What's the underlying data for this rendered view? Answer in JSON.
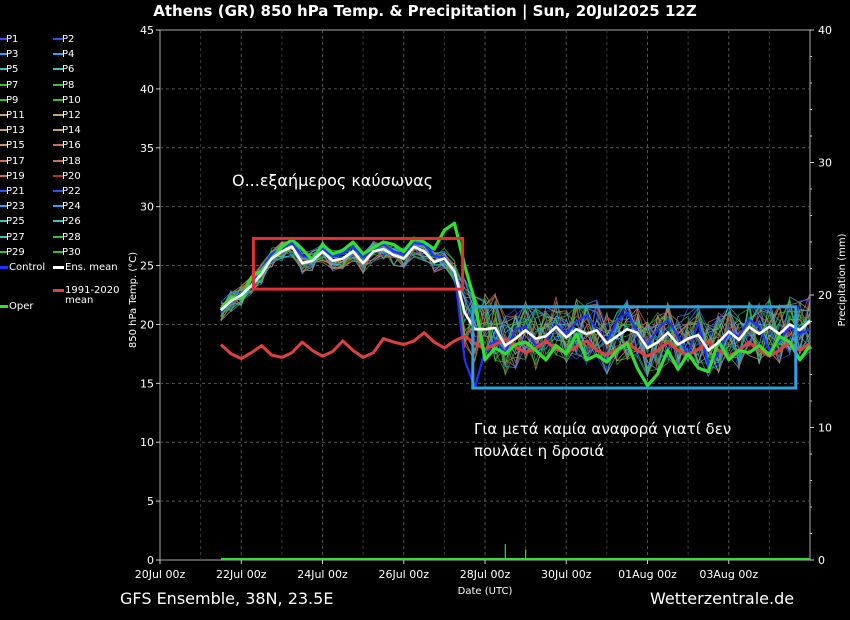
{
  "title": "Athens  (GR)  850 hPa Temp. & Precipitation | Sun, 20Jul2025 12Z",
  "footer": {
    "left": "GFS Ensemble, 38N, 23.5E",
    "right": "Wetterzentrale.de"
  },
  "legend": {
    "members": [
      {
        "label": "P1",
        "color": "#3050ff"
      },
      {
        "label": "P2",
        "color": "#3050ff"
      },
      {
        "label": "P3",
        "color": "#30a0ff"
      },
      {
        "label": "P4",
        "color": "#30a0ff"
      },
      {
        "label": "P5",
        "color": "#40c0c0"
      },
      {
        "label": "P6",
        "color": "#40c0c0"
      },
      {
        "label": "P7",
        "color": "#30c030"
      },
      {
        "label": "P8",
        "color": "#30c030"
      },
      {
        "label": "P9",
        "color": "#30c030"
      },
      {
        "label": "P10",
        "color": "#30c030"
      },
      {
        "label": "P11",
        "color": "#c8a070"
      },
      {
        "label": "P12",
        "color": "#c8a070"
      },
      {
        "label": "P13",
        "color": "#c8a070"
      },
      {
        "label": "P14",
        "color": "#c8a070"
      },
      {
        "label": "P15",
        "color": "#d09060"
      },
      {
        "label": "P16",
        "color": "#d07050"
      },
      {
        "label": "P17",
        "color": "#d07050"
      },
      {
        "label": "P18",
        "color": "#d07050"
      },
      {
        "label": "P19",
        "color": "#d07050"
      },
      {
        "label": "P20",
        "color": "#c03030"
      },
      {
        "label": "P21",
        "color": "#3050ff"
      },
      {
        "label": "P22",
        "color": "#3050ff"
      },
      {
        "label": "P23",
        "color": "#30a0ff"
      },
      {
        "label": "P24",
        "color": "#30a0ff"
      },
      {
        "label": "P25",
        "color": "#40c0c0"
      },
      {
        "label": "P26",
        "color": "#40c0c0"
      },
      {
        "label": "P27",
        "color": "#40c0c0"
      },
      {
        "label": "P28",
        "color": "#30c030"
      },
      {
        "label": "P29",
        "color": "#30c030"
      },
      {
        "label": "P30",
        "color": "#30c030"
      }
    ],
    "control": {
      "label": "Control",
      "color": "#2030ff"
    },
    "ens_mean": {
      "label": "Ens. mean",
      "color": "#ffffff"
    },
    "oper": {
      "label": "Oper",
      "color": "#30e030"
    },
    "clim": {
      "label": "1991-2020\nmean",
      "line1": "1991-2020",
      "line2": "mean",
      "color": "#e04040"
    }
  },
  "annotations": {
    "heatwave": "Ο...εξαήμερος καύσωνας",
    "note_line1": "Για μετά καμία αναφορά γιατί δεν",
    "note_line2": "πουλάει η δροσιά",
    "red_box_color": "#e03030",
    "blue_box_color": "#30a0e0"
  },
  "chart_data": {
    "type": "line",
    "xlabel": "Date (UTC)",
    "ylabel": "850 hPa Temp. (°C)",
    "y2label": "Precipitation (mm)",
    "ylim": [
      0,
      45
    ],
    "y2lim": [
      0,
      40
    ],
    "yticks": [
      0,
      5,
      10,
      15,
      20,
      25,
      30,
      35,
      40,
      45
    ],
    "y2ticks": [
      0,
      10,
      20,
      30,
      40
    ],
    "x_start_day": 0,
    "x_end_day": 16,
    "xtick_days": [
      0,
      2,
      4,
      6,
      8,
      10,
      12,
      14
    ],
    "xtick_labels": [
      "20Jul 00z",
      "22Jul 00z",
      "24Jul 00z",
      "26Jul 00z",
      "28Jul 00z",
      "30Jul 00z",
      "01Aug 00z",
      "03Aug 00z"
    ],
    "grid": true,
    "series": [
      {
        "name": "1991-2020 mean",
        "color": "#e04040",
        "x": [
          1.5,
          1.75,
          2,
          2.25,
          2.5,
          2.75,
          3,
          3.25,
          3.5,
          3.75,
          4,
          4.25,
          4.5,
          4.75,
          5,
          5.25,
          5.5,
          5.75,
          6,
          6.25,
          6.5,
          6.75,
          7,
          7.25,
          7.5,
          7.75,
          8,
          8.25,
          8.5,
          8.75,
          9,
          9.25,
          9.5,
          9.75,
          10,
          10.25,
          10.5,
          10.75,
          11,
          11.25,
          11.5,
          11.75,
          12,
          12.25,
          12.5,
          12.75,
          13,
          13.25,
          13.5,
          13.75,
          14,
          14.25,
          14.5,
          14.75,
          15,
          15.25,
          15.5,
          15.75,
          16
        ],
        "y": [
          18.3,
          17.5,
          17.1,
          17.6,
          18.2,
          17.4,
          17.2,
          17.6,
          18.5,
          17.8,
          17.3,
          17.7,
          18.6,
          17.8,
          17.2,
          17.6,
          18.8,
          18.5,
          18.3,
          18.6,
          19.3,
          18.5,
          18.0,
          18.6,
          19.0,
          18.4,
          17.9,
          18.3,
          18.8,
          18.1,
          17.6,
          18.0,
          18.6,
          17.9,
          17.6,
          18.1,
          18.6,
          17.8,
          17.4,
          17.9,
          18.5,
          17.8,
          17.3,
          17.8,
          18.5,
          17.8,
          17.4,
          17.9,
          18.6,
          17.8,
          17.3,
          17.8,
          18.5,
          17.8,
          17.3,
          17.8,
          18.5,
          17.8,
          18.4
        ]
      },
      {
        "name": "Ens. mean",
        "color": "#ffffff",
        "x": [
          1.5,
          1.75,
          2,
          2.25,
          2.5,
          2.75,
          3,
          3.25,
          3.5,
          3.75,
          4,
          4.25,
          4.5,
          4.75,
          5,
          5.25,
          5.5,
          5.75,
          6,
          6.25,
          6.5,
          6.75,
          7,
          7.25,
          7.5,
          7.75,
          8,
          8.25,
          8.5,
          8.75,
          9,
          9.25,
          9.5,
          9.75,
          10,
          10.25,
          10.5,
          10.75,
          11,
          11.25,
          11.5,
          11.75,
          12,
          12.25,
          12.5,
          12.75,
          13,
          13.25,
          13.5,
          13.75,
          14,
          14.25,
          14.5,
          14.75,
          15,
          15.25,
          15.5,
          15.75,
          16
        ],
        "y": [
          21.2,
          22.0,
          22.5,
          23.3,
          24.3,
          25.6,
          26.2,
          26.6,
          25.2,
          25.4,
          26.2,
          25.4,
          25.6,
          26.2,
          25.2,
          26.2,
          26.4,
          25.9,
          25.6,
          26.6,
          26.2,
          25.3,
          25.6,
          24.5,
          21.0,
          19.6,
          19.6,
          19.7,
          18.2,
          18.8,
          19.5,
          18.8,
          19.0,
          19.8,
          18.9,
          19.6,
          19.2,
          19.5,
          18.4,
          19.0,
          19.6,
          19.3,
          18.0,
          18.5,
          19.3,
          18.3,
          18.8,
          19.1,
          17.8,
          18.5,
          19.4,
          18.7,
          19.8,
          19.2,
          19.8,
          19.2,
          20.0,
          19.5,
          20.3
        ]
      },
      {
        "name": "Oper",
        "color": "#30e030",
        "x": [
          1.5,
          1.75,
          2,
          2.25,
          2.5,
          2.75,
          3,
          3.25,
          3.5,
          3.75,
          4,
          4.25,
          4.5,
          4.75,
          5,
          5.25,
          5.5,
          5.75,
          6,
          6.25,
          6.5,
          6.75,
          7,
          7.25,
          7.5,
          7.75,
          8,
          8.25,
          8.5,
          8.75,
          9,
          9.25,
          9.5,
          9.75,
          10,
          10.25,
          10.5,
          10.75,
          11,
          11.25,
          11.5,
          11.75,
          12,
          12.25,
          12.5,
          12.75,
          13,
          13.25,
          13.5,
          13.75,
          14,
          14.25,
          14.5,
          14.75,
          15,
          15.25,
          15.5,
          15.75,
          16
        ],
        "y": [
          21.3,
          22.3,
          22.2,
          24.0,
          24.6,
          25.6,
          26.6,
          27.2,
          26.4,
          25.5,
          26.8,
          26.0,
          26.3,
          27.0,
          26.0,
          26.5,
          27.0,
          26.8,
          26.2,
          27.3,
          27.0,
          26.4,
          28.0,
          28.6,
          25.0,
          22.0,
          17.0,
          18.0,
          17.5,
          18.3,
          18.5,
          17.8,
          17.0,
          18.2,
          17.5,
          19.2,
          17.0,
          17.4,
          16.8,
          17.8,
          18.4,
          16.3,
          14.8,
          15.8,
          17.8,
          16.2,
          17.5,
          16.3,
          16.0,
          18.6,
          17.0,
          17.8,
          17.6,
          18.2,
          17.4,
          19.0,
          18.5,
          17.0,
          18.2
        ]
      },
      {
        "name": "Control",
        "color": "#2030ff",
        "x": [
          1.5,
          1.75,
          2,
          2.25,
          2.5,
          2.75,
          3,
          3.25,
          3.5,
          3.75,
          4,
          4.25,
          4.5,
          4.75,
          5,
          5.25,
          5.5,
          5.75,
          6,
          6.25,
          6.5,
          6.75,
          7,
          7.25,
          7.5,
          7.75,
          8,
          8.25,
          8.5,
          8.75,
          9,
          9.25,
          9.5,
          9.75,
          10,
          10.25,
          10.5,
          10.75,
          11,
          11.25,
          11.5,
          11.75,
          12,
          12.25,
          12.5,
          12.75,
          13,
          13.25,
          13.5,
          13.75,
          14,
          14.25,
          14.5,
          14.75,
          15,
          15.25,
          15.5,
          15.75,
          16
        ],
        "y": [
          21.0,
          22.2,
          22.5,
          23.6,
          24.8,
          26.0,
          26.5,
          26.9,
          25.8,
          25.7,
          26.4,
          25.8,
          26.0,
          26.6,
          25.7,
          26.4,
          26.8,
          26.2,
          25.9,
          26.9,
          26.8,
          25.8,
          25.7,
          24.4,
          17.0,
          14.6,
          17.8,
          18.6,
          17.6,
          19.6,
          19.8,
          18.2,
          18.6,
          20.0,
          19.2,
          20.2,
          20.8,
          19.6,
          18.6,
          20.3,
          21.0,
          19.4,
          18.2,
          19.6,
          20.4,
          19.0,
          17.4,
          20.2,
          16.5,
          17.6,
          19.4,
          19.0,
          20.4,
          19.8,
          17.8,
          18.6,
          19.8,
          19.2,
          19.6
        ]
      }
    ],
    "precipitation": {
      "series": "Oper",
      "color": "#30e030",
      "x": [
        8.0,
        8.5,
        9.0,
        9.5,
        10.0,
        10.5,
        11.0,
        11.5,
        12.0,
        12.5,
        13.0,
        13.5,
        14.0,
        14.5,
        15.0,
        15.5,
        16.0
      ],
      "y": [
        0.1,
        0.3,
        0.2,
        0.1,
        0.1,
        0.1,
        0.1,
        0.1,
        0.1,
        0.1,
        0.1,
        0.1,
        0.1,
        0.1,
        0.1,
        0.1,
        0.1
      ]
    },
    "ensemble_spread_note": "P1–P30 member traces"
  }
}
